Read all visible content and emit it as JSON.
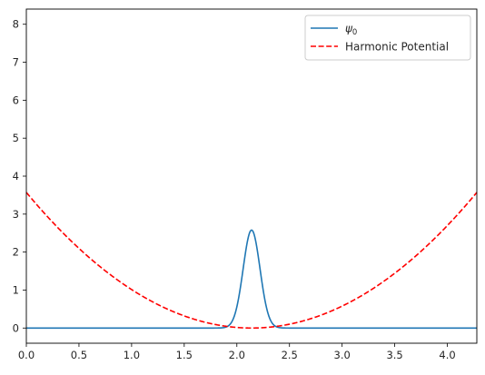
{
  "chart_data": {
    "type": "line",
    "title": "",
    "xlabel": "",
    "ylabel": "",
    "xlim": [
      0,
      4.28
    ],
    "ylim": [
      -0.4,
      8.4
    ],
    "x_ticks": [
      "0.0",
      "0.5",
      "1.0",
      "1.5",
      "2.0",
      "2.5",
      "3.0",
      "3.5",
      "4.0"
    ],
    "y_ticks": [
      "0",
      "1",
      "2",
      "3",
      "4",
      "5",
      "6",
      "7",
      "8"
    ],
    "grid": false,
    "legend": {
      "placement": "top-right"
    },
    "series": [
      {
        "name": "ψ₀",
        "label_base": "ψ",
        "label_sub": "0",
        "style": "solid",
        "color": "#1f77b4",
        "model": "gaussian",
        "center": 2.14,
        "peak": 2.58,
        "sigma": 0.08,
        "x": [
          0.0,
          1.8,
          1.9,
          1.95,
          2.0,
          2.05,
          2.1,
          2.14,
          2.18,
          2.23,
          2.28,
          2.33,
          2.38,
          2.48,
          4.28
        ],
        "values": [
          0.0,
          0.0,
          0.03,
          0.12,
          0.56,
          1.34,
          2.26,
          2.58,
          2.26,
          1.34,
          0.56,
          0.12,
          0.03,
          0.0,
          0.0
        ]
      },
      {
        "name": "Harmonic Potential",
        "style": "dashed",
        "color": "#ff0000",
        "model": "parabola",
        "center": 2.14,
        "curvature": 0.78,
        "x": [
          0.0,
          0.5,
          1.0,
          1.5,
          2.14,
          2.5,
          3.0,
          3.5,
          4.0,
          4.28
        ],
        "values": [
          3.57,
          2.1,
          1.01,
          0.32,
          0.0,
          0.1,
          0.58,
          1.44,
          2.7,
          3.57
        ]
      }
    ]
  }
}
